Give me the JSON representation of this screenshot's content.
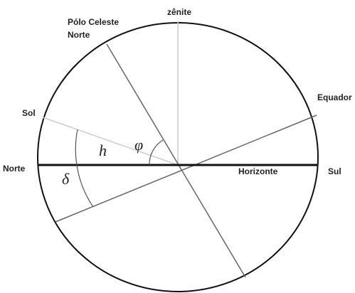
{
  "labels": {
    "zenith": "zênite",
    "pole_line1": "Pólo Celeste",
    "pole_line2": "Norte",
    "equator": "Equador",
    "sun": "Sol",
    "north": "Norte",
    "horizon": "Horizonte",
    "south": "Sul",
    "altitude": "h",
    "latitude": "φ",
    "declination": "δ"
  }
}
